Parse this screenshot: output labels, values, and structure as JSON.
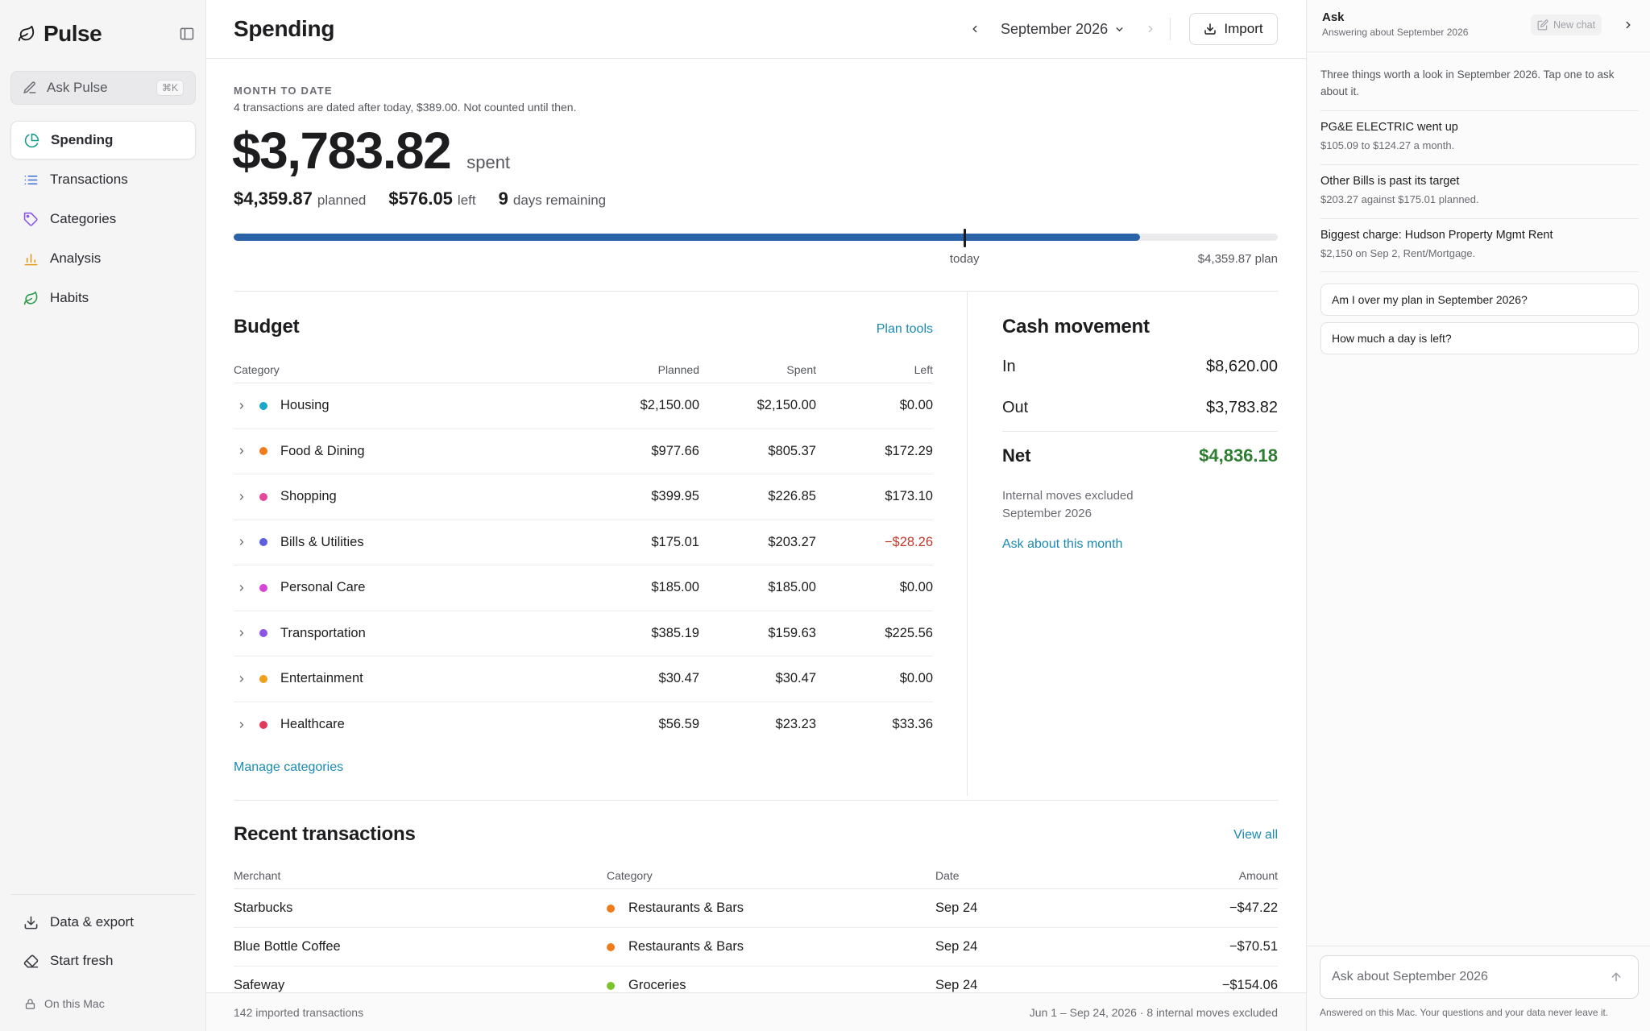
{
  "app": {
    "name": "Pulse"
  },
  "sidebar": {
    "ask_label": "Ask Pulse",
    "ask_shortcut": "⌘K",
    "items": [
      {
        "label": "Spending",
        "icon": "pie-chart-icon",
        "active": true
      },
      {
        "label": "Transactions",
        "icon": "list-icon",
        "active": false
      },
      {
        "label": "Categories",
        "icon": "tag-icon",
        "active": false
      },
      {
        "label": "Analysis",
        "icon": "bar-chart-icon",
        "active": false
      },
      {
        "label": "Habits",
        "icon": "leaf-icon",
        "active": false
      }
    ],
    "footer": [
      {
        "label": "Data & export",
        "icon": "download-icon"
      },
      {
        "label": "Start fresh",
        "icon": "eraser-icon"
      }
    ],
    "on_mac": "On this Mac"
  },
  "header": {
    "title": "Spending",
    "month": "September 2026",
    "import_label": "Import"
  },
  "summary": {
    "eyebrow": "MONTH TO DATE",
    "note": "4 transactions are dated after today, $389.00. Not counted until then.",
    "spent": "$3,783.82",
    "spent_suffix": "spent",
    "planned": "$4,359.87",
    "planned_label": "planned",
    "left": "$576.05",
    "left_label": "left",
    "days": "9",
    "days_label": "days remaining",
    "progress_fraction": 0.868,
    "today_fraction": 0.7,
    "today_label": "today",
    "plan_label": "$4,359.87 plan"
  },
  "budget": {
    "title": "Budget",
    "plan_tools": "Plan tools",
    "columns": [
      "Category",
      "Planned",
      "Spent",
      "Left"
    ],
    "rows": [
      {
        "category": "Housing",
        "color": "#1aa7c9",
        "planned": "$2,150.00",
        "spent": "$2,150.00",
        "left": "$0.00",
        "negative": false
      },
      {
        "category": "Food & Dining",
        "color": "#f07b1a",
        "planned": "$977.66",
        "spent": "$805.37",
        "left": "$172.29",
        "negative": false
      },
      {
        "category": "Shopping",
        "color": "#e3489a",
        "planned": "$399.95",
        "spent": "$226.85",
        "left": "$173.10",
        "negative": false
      },
      {
        "category": "Bills & Utilities",
        "color": "#5b5fde",
        "planned": "$175.01",
        "spent": "$203.27",
        "left": "−$28.26",
        "negative": true
      },
      {
        "category": "Personal Care",
        "color": "#d646d6",
        "planned": "$185.00",
        "spent": "$185.00",
        "left": "$0.00",
        "negative": false
      },
      {
        "category": "Transportation",
        "color": "#8b55e6",
        "planned": "$385.19",
        "spent": "$159.63",
        "left": "$225.56",
        "negative": false
      },
      {
        "category": "Entertainment",
        "color": "#f0a01a",
        "planned": "$30.47",
        "spent": "$30.47",
        "left": "$0.00",
        "negative": false
      },
      {
        "category": "Healthcare",
        "color": "#e23a5b",
        "planned": "$56.59",
        "spent": "$23.23",
        "left": "$33.36",
        "negative": false
      }
    ],
    "manage_label": "Manage categories"
  },
  "cash": {
    "title": "Cash movement",
    "in_label": "In",
    "in_value": "$8,620.00",
    "out_label": "Out",
    "out_value": "$3,783.82",
    "net_label": "Net",
    "net_value": "$4,836.18",
    "note_line1": "Internal moves excluded",
    "note_line2": "September 2026",
    "ask_link": "Ask about this month"
  },
  "recent": {
    "title": "Recent transactions",
    "view_all": "View all",
    "columns": [
      "Merchant",
      "Category",
      "Date",
      "Amount"
    ],
    "rows": [
      {
        "merchant": "Starbucks",
        "category": "Restaurants & Bars",
        "color": "#f07b1a",
        "date": "Sep 24",
        "amount": "−$47.22"
      },
      {
        "merchant": "Blue Bottle Coffee",
        "category": "Restaurants & Bars",
        "color": "#f07b1a",
        "date": "Sep 24",
        "amount": "−$70.51"
      },
      {
        "merchant": "Safeway",
        "category": "Groceries",
        "color": "#7cc42a",
        "date": "Sep 24",
        "amount": "−$154.06"
      }
    ]
  },
  "statusbar": {
    "left": "142 imported transactions",
    "right": "Jun 1 – Sep 24, 2026 · 8 internal moves excluded"
  },
  "ask": {
    "title": "Ask",
    "subtitle": "Answering about September 2026",
    "new_chat": "New chat",
    "intro": "Three things worth a look in September 2026. Tap one to ask about it.",
    "insights": [
      {
        "title": "PG&E ELECTRIC went up",
        "detail": "$105.09 to $124.27 a month."
      },
      {
        "title": "Other Bills is past its target",
        "detail": "$203.27 against $175.01 planned."
      },
      {
        "title": "Biggest charge: Hudson Property Mgmt Rent",
        "detail": "$2,150 on Sep 2, Rent/Mortgage."
      }
    ],
    "suggestions": [
      "Am I over my plan in September 2026?",
      "How much a day is left?"
    ],
    "input_placeholder": "Ask about September 2026",
    "footer": "Answered on this Mac. Your questions and your data never leave it."
  }
}
